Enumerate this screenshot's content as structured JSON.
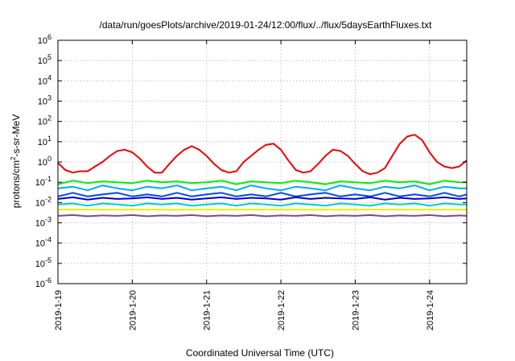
{
  "chart_data": {
    "type": "line",
    "title": "/data/run/goesPlots/archive/2019-01-24/12:00/flux/../flux/5daysEarthFluxes.txt",
    "xlabel": "Coordinated Universal Time (UTC)",
    "ylabel_parts": {
      "pre": "protons/cm",
      "sup": "2",
      "post": "-s-sr-MeV"
    },
    "y_scale": "log",
    "ylim": [
      1e-06,
      1000000.0
    ],
    "y_ticks": [
      {
        "base": "10",
        "exp": "-6",
        "value": 1e-06
      },
      {
        "base": "10",
        "exp": "-5",
        "value": 1e-05
      },
      {
        "base": "10",
        "exp": "-4",
        "value": 0.0001
      },
      {
        "base": "10",
        "exp": "-3",
        "value": 0.001
      },
      {
        "base": "10",
        "exp": "-2",
        "value": 0.01
      },
      {
        "base": "10",
        "exp": "-1",
        "value": 0.1
      },
      {
        "base": "10",
        "exp": "0",
        "value": 1
      },
      {
        "base": "10",
        "exp": "1",
        "value": 10
      },
      {
        "base": "10",
        "exp": "2",
        "value": 100
      },
      {
        "base": "10",
        "exp": "3",
        "value": 1000
      },
      {
        "base": "10",
        "exp": "4",
        "value": 10000
      },
      {
        "base": "10",
        "exp": "5",
        "value": 100000
      },
      {
        "base": "10",
        "exp": "6",
        "value": 1000000
      }
    ],
    "x_ticks": [
      "2019-1-19",
      "2019-1-20",
      "2019-1-21",
      "2019-1-22",
      "2019-1-23",
      "2019-1-24"
    ],
    "x_range_days": [
      0,
      5.5
    ],
    "grid": true,
    "series": [
      {
        "color": "#ee0000",
        "x": [
          0,
          0.1,
          0.2,
          0.3,
          0.4,
          0.5,
          0.6,
          0.7,
          0.8,
          0.9,
          1.0,
          1.1,
          1.2,
          1.3,
          1.4,
          1.5,
          1.6,
          1.7,
          1.8,
          1.9,
          2.0,
          2.1,
          2.2,
          2.3,
          2.4,
          2.5,
          2.6,
          2.7,
          2.8,
          2.9,
          3.0,
          3.1,
          3.2,
          3.3,
          3.4,
          3.5,
          3.6,
          3.7,
          3.8,
          3.9,
          4.0,
          4.1,
          4.2,
          4.3,
          4.4,
          4.5,
          4.6,
          4.7,
          4.8,
          4.9,
          5.0,
          5.1,
          5.2,
          5.3,
          5.4,
          5.5
        ],
        "values": [
          0.9,
          0.4,
          0.3,
          0.35,
          0.35,
          0.6,
          1.0,
          2.0,
          3.5,
          4.0,
          3.0,
          1.5,
          0.6,
          0.3,
          0.3,
          0.8,
          2.0,
          4.0,
          6.0,
          4.0,
          2.0,
          0.8,
          0.4,
          0.3,
          0.35,
          1.0,
          2.0,
          4.0,
          7.0,
          8.0,
          4.0,
          1.2,
          0.4,
          0.3,
          0.35,
          0.8,
          2.0,
          4.0,
          3.5,
          2.0,
          0.8,
          0.35,
          0.25,
          0.3,
          0.5,
          2.0,
          8.0,
          18.0,
          22.0,
          12.0,
          3.0,
          1.0,
          0.6,
          0.5,
          0.6,
          1.2
        ]
      },
      {
        "color": "#00ee00",
        "x": [
          0,
          0.2,
          0.4,
          0.6,
          0.8,
          1.0,
          1.2,
          1.4,
          1.6,
          1.8,
          2.0,
          2.2,
          2.4,
          2.6,
          2.8,
          3.0,
          3.2,
          3.4,
          3.6,
          3.8,
          4.0,
          4.2,
          4.4,
          4.6,
          4.8,
          5.0,
          5.2,
          5.4,
          5.5
        ],
        "values": [
          0.08,
          0.12,
          0.09,
          0.11,
          0.1,
          0.09,
          0.12,
          0.1,
          0.11,
          0.09,
          0.1,
          0.12,
          0.08,
          0.11,
          0.1,
          0.09,
          0.12,
          0.1,
          0.08,
          0.11,
          0.1,
          0.09,
          0.12,
          0.1,
          0.11,
          0.08,
          0.12,
          0.1,
          0.1
        ]
      },
      {
        "color": "#00aaff",
        "x": [
          0,
          0.2,
          0.4,
          0.6,
          0.8,
          1.0,
          1.2,
          1.4,
          1.6,
          1.8,
          2.0,
          2.2,
          2.4,
          2.6,
          2.8,
          3.0,
          3.2,
          3.4,
          3.6,
          3.8,
          4.0,
          4.2,
          4.4,
          4.6,
          4.8,
          5.0,
          5.2,
          5.4,
          5.5
        ],
        "values": [
          0.05,
          0.06,
          0.04,
          0.07,
          0.05,
          0.04,
          0.06,
          0.05,
          0.07,
          0.04,
          0.05,
          0.06,
          0.04,
          0.07,
          0.05,
          0.04,
          0.06,
          0.05,
          0.04,
          0.07,
          0.05,
          0.04,
          0.06,
          0.05,
          0.07,
          0.04,
          0.06,
          0.05,
          0.05
        ]
      },
      {
        "color": "#0044ff",
        "x": [
          0,
          0.2,
          0.4,
          0.6,
          0.8,
          1.0,
          1.2,
          1.4,
          1.6,
          1.8,
          2.0,
          2.2,
          2.4,
          2.6,
          2.8,
          3.0,
          3.2,
          3.4,
          3.6,
          3.8,
          4.0,
          4.2,
          4.4,
          4.6,
          4.8,
          5.0,
          5.2,
          5.4,
          5.5
        ],
        "values": [
          0.02,
          0.03,
          0.02,
          0.025,
          0.03,
          0.02,
          0.025,
          0.02,
          0.03,
          0.02,
          0.025,
          0.03,
          0.02,
          0.025,
          0.02,
          0.03,
          0.02,
          0.025,
          0.03,
          0.02,
          0.025,
          0.02,
          0.03,
          0.02,
          0.025,
          0.02,
          0.03,
          0.02,
          0.025
        ]
      },
      {
        "color": "#0000cc",
        "x": [
          0,
          0.2,
          0.4,
          0.6,
          0.8,
          1.0,
          1.2,
          1.4,
          1.6,
          1.8,
          2.0,
          2.2,
          2.4,
          2.6,
          2.8,
          3.0,
          3.2,
          3.4,
          3.6,
          3.8,
          4.0,
          4.2,
          4.4,
          4.6,
          4.8,
          5.0,
          5.2,
          5.4,
          5.5
        ],
        "values": [
          0.015,
          0.018,
          0.014,
          0.017,
          0.015,
          0.016,
          0.018,
          0.015,
          0.017,
          0.014,
          0.016,
          0.018,
          0.015,
          0.017,
          0.016,
          0.014,
          0.018,
          0.015,
          0.017,
          0.016,
          0.015,
          0.018,
          0.014,
          0.017,
          0.015,
          0.016,
          0.018,
          0.015,
          0.016
        ]
      },
      {
        "color": "#00cccc",
        "x": [
          0,
          0.2,
          0.4,
          0.6,
          0.8,
          1.0,
          1.2,
          1.4,
          1.6,
          1.8,
          2.0,
          2.2,
          2.4,
          2.6,
          2.8,
          3.0,
          3.2,
          3.4,
          3.6,
          3.8,
          4.0,
          4.2,
          4.4,
          4.6,
          4.8,
          5.0,
          5.2,
          5.4,
          5.5
        ],
        "values": [
          0.008,
          0.009,
          0.007,
          0.009,
          0.008,
          0.007,
          0.009,
          0.008,
          0.009,
          0.007,
          0.008,
          0.009,
          0.007,
          0.009,
          0.008,
          0.007,
          0.009,
          0.008,
          0.007,
          0.009,
          0.008,
          0.007,
          0.009,
          0.008,
          0.009,
          0.007,
          0.009,
          0.008,
          0.008
        ]
      },
      {
        "color": "#eeee00",
        "x": [
          0,
          0.5,
          1.0,
          1.5,
          2.0,
          2.5,
          3.0,
          3.5,
          4.0,
          4.5,
          5.0,
          5.5
        ],
        "values": [
          0.0045,
          0.0045,
          0.0045,
          0.0044,
          0.0045,
          0.0045,
          0.0045,
          0.0044,
          0.0045,
          0.0045,
          0.0045,
          0.0045
        ]
      },
      {
        "color": "#884488",
        "x": [
          0,
          0.2,
          0.4,
          0.6,
          0.8,
          1.0,
          1.2,
          1.4,
          1.6,
          1.8,
          2.0,
          2.2,
          2.4,
          2.6,
          2.8,
          3.0,
          3.2,
          3.4,
          3.6,
          3.8,
          4.0,
          4.2,
          4.4,
          4.6,
          4.8,
          5.0,
          5.2,
          5.4,
          5.5
        ],
        "values": [
          0.0022,
          0.0024,
          0.0021,
          0.0023,
          0.0022,
          0.0024,
          0.0021,
          0.0023,
          0.0022,
          0.0024,
          0.0021,
          0.0023,
          0.0022,
          0.0024,
          0.0021,
          0.0023,
          0.0022,
          0.0024,
          0.0021,
          0.0023,
          0.0022,
          0.0024,
          0.0021,
          0.0023,
          0.0022,
          0.0024,
          0.0021,
          0.0023,
          0.0022
        ]
      }
    ]
  }
}
